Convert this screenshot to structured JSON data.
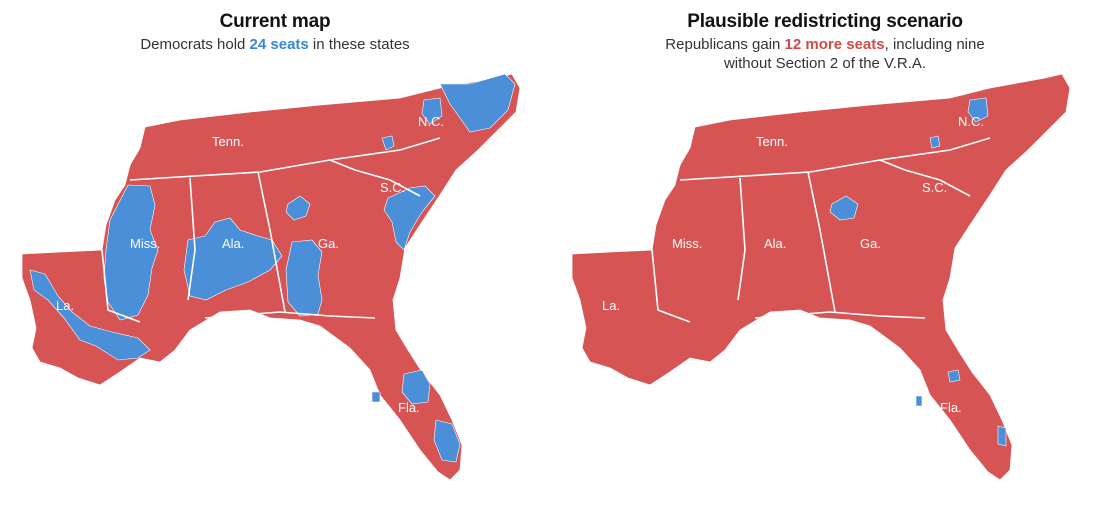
{
  "colors": {
    "republican": "#d65454",
    "democrat": "#4a8fd8",
    "border": "#ffffff"
  },
  "panels": [
    {
      "id": "current",
      "title": "Current map",
      "subtitle_before": "Democrats hold ",
      "subtitle_highlight": "24 seats",
      "subtitle_after": " in these states",
      "highlight_color": "#3a87d4"
    },
    {
      "id": "scenario",
      "title": "Plausible redistricting scenario",
      "subtitle_before": "Republicans gain ",
      "subtitle_highlight": "12 more seats",
      "subtitle_after": ", including nine without Section 2 of the V.R.A.",
      "highlight_color": "#d24a4a"
    }
  ],
  "state_labels": [
    "Tenn.",
    "N.C.",
    "S.C.",
    "Miss.",
    "Ala.",
    "Ga.",
    "La.",
    "Fla."
  ]
}
